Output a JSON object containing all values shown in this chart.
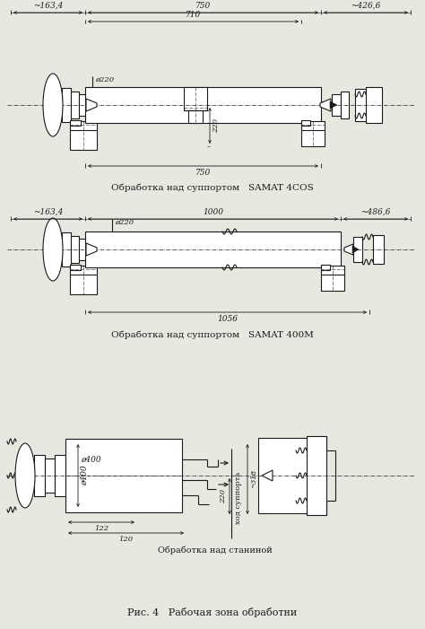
{
  "bg_color": "#e8e8e0",
  "line_color": "#1a1a1a",
  "fig_title": "Рис. 4   Рабочая зона обработни",
  "cap1": "Обработка над суппортом   SAMAT 4COS",
  "cap2": "Обработка над суппортом   SAMAT 400M",
  "cap3": "Обработка над станиной",
  "d1_dims": [
    "~163,4",
    "750",
    "~426,6",
    "710",
    "220",
    "750"
  ],
  "d2_dims": [
    "~163,4",
    "1000",
    "~486,6",
    "1056"
  ],
  "d3_dims": [
    "ø400",
    "122",
    "120",
    "220",
    "~318",
    "ход суппорта"
  ]
}
